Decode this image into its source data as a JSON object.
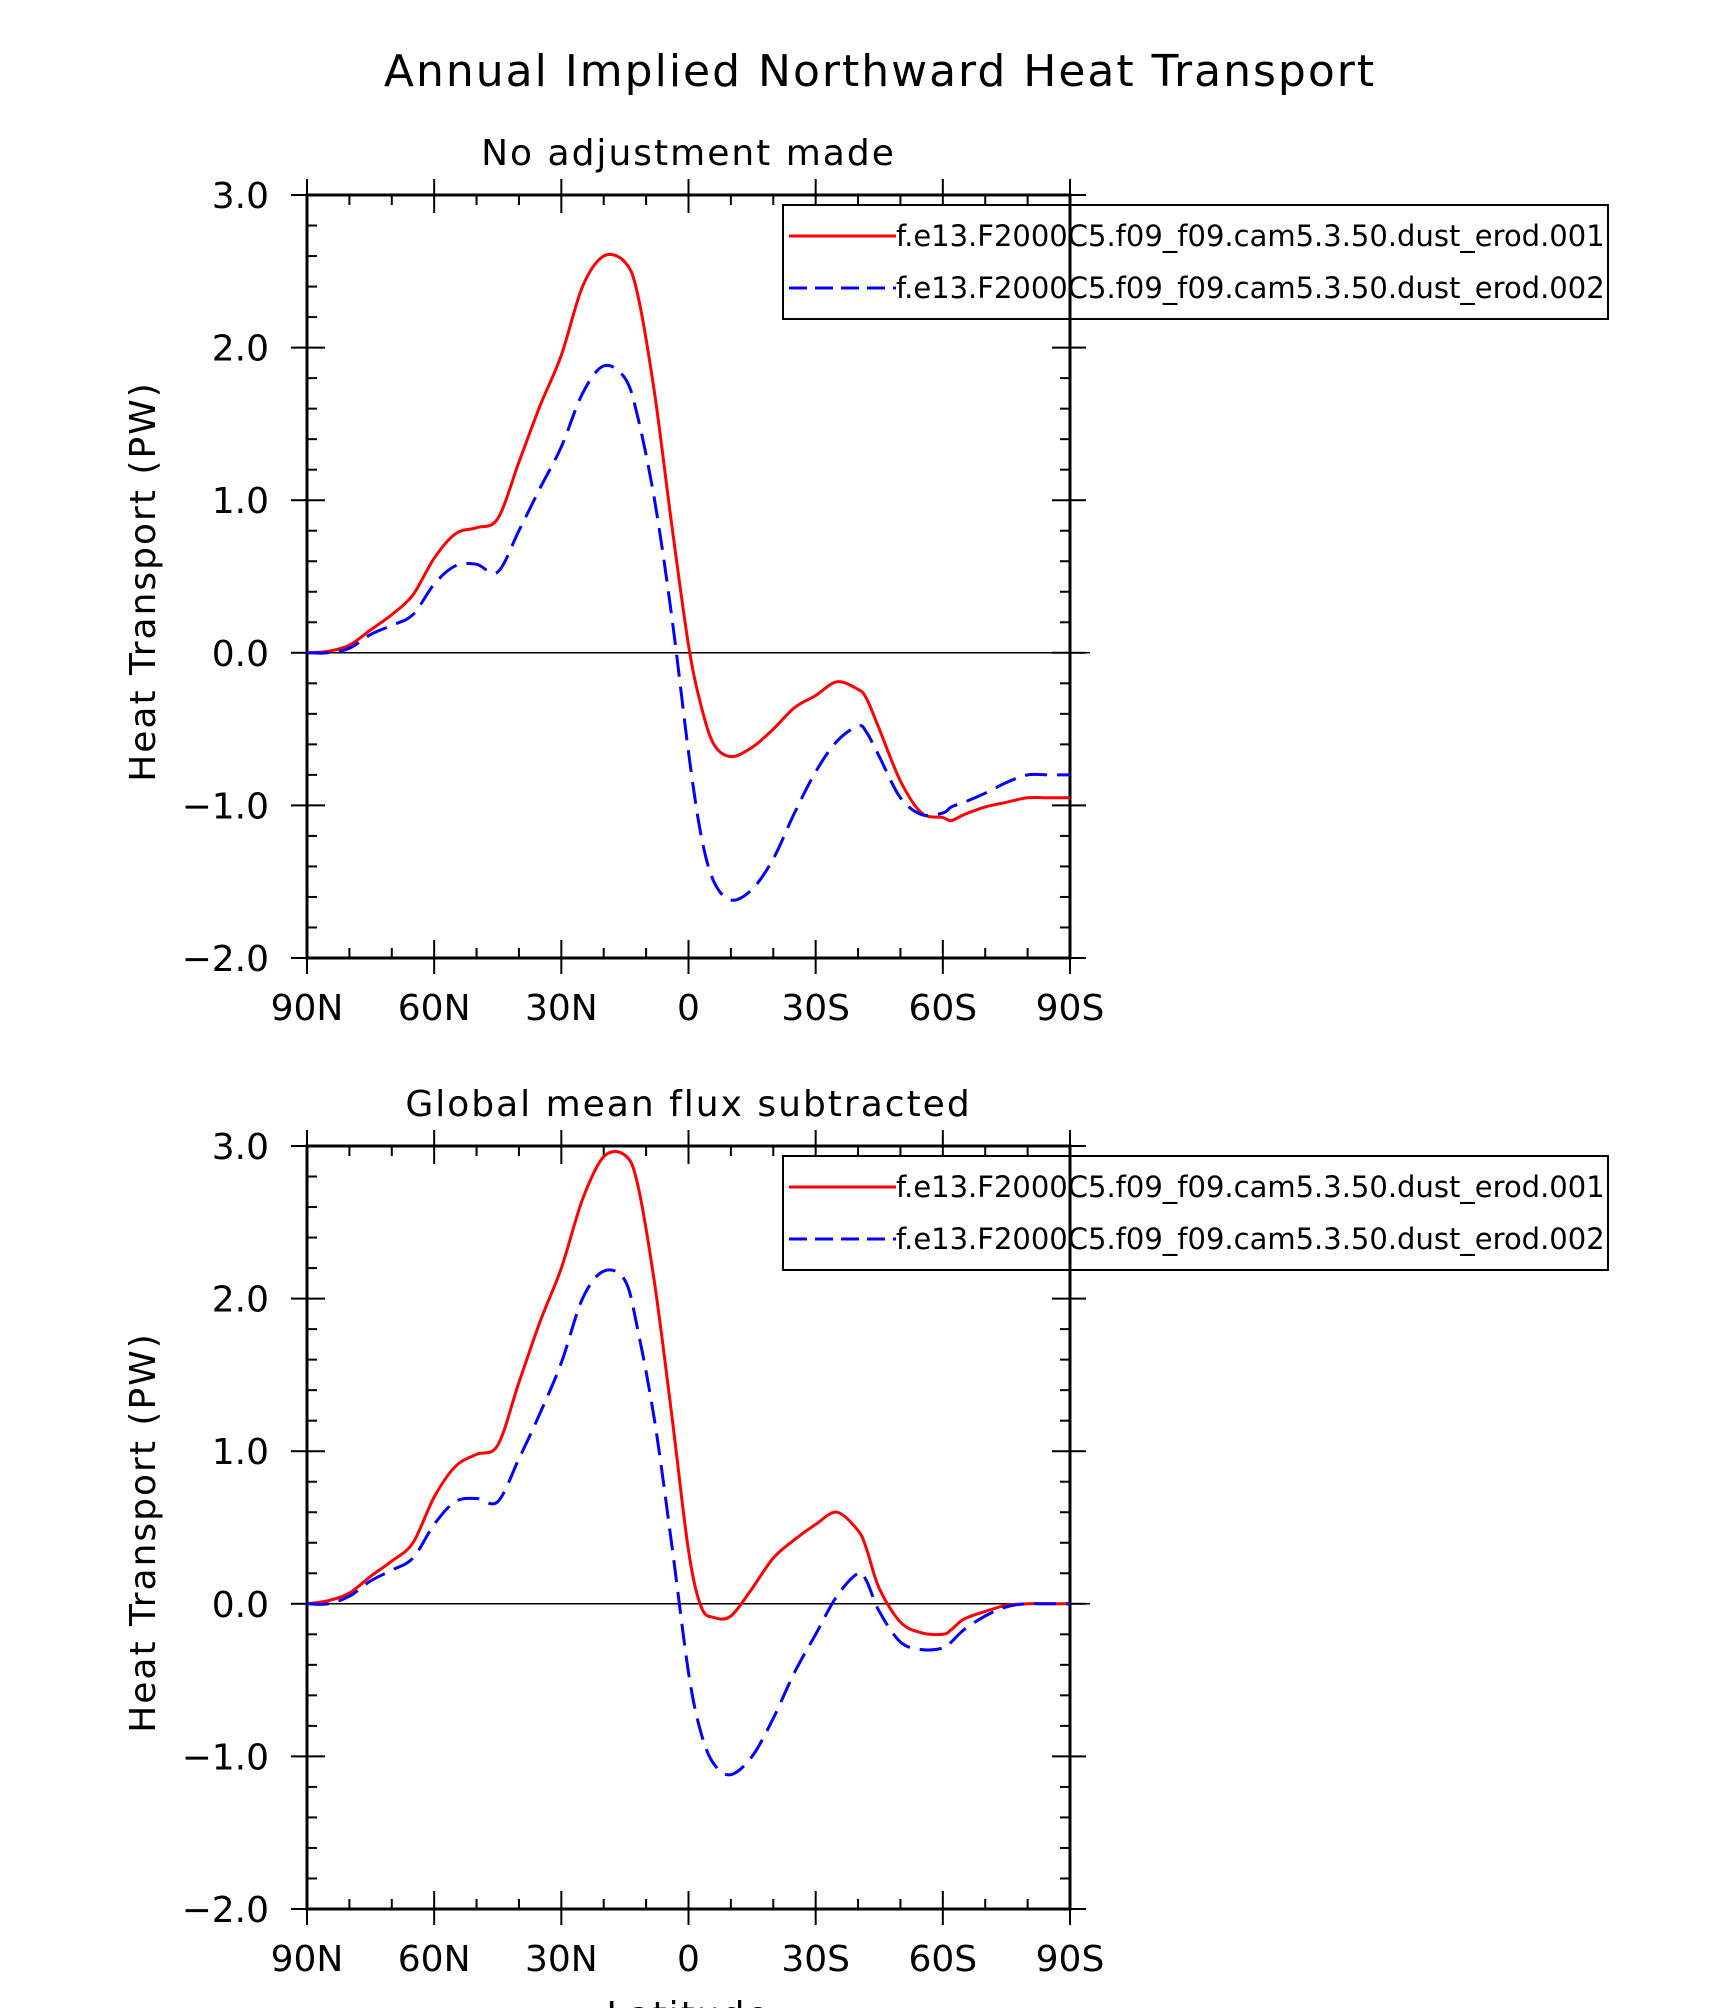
{
  "figure_title": "Annual Implied Northward Heat Transport",
  "chart_data": [
    {
      "type": "line",
      "title": "No adjustment made",
      "xlabel": "",
      "ylabel": "Heat Transport (PW)",
      "xlim": [
        -90,
        90
      ],
      "ylim": [
        -2.0,
        3.0
      ],
      "xticks": [
        -90,
        -60,
        -30,
        0,
        30,
        60,
        90
      ],
      "xtick_labels": [
        "90N",
        "60N",
        "30N",
        "0",
        "30S",
        "60S",
        "90S"
      ],
      "yticks": [
        3.0,
        2.0,
        1.0,
        0.0,
        -1.0,
        -2.0
      ],
      "ytick_labels": [
        "3.0",
        "2.0",
        "1.0",
        "0.0",
        "−1.0",
        "−2.0"
      ],
      "x": [
        -90,
        -85,
        -80,
        -75,
        -70,
        -65,
        -60,
        -55,
        -50,
        -45,
        -40,
        -35,
        -30,
        -25,
        -20,
        -15,
        -12,
        -8,
        -4,
        0,
        3,
        6,
        10,
        15,
        20,
        25,
        30,
        35,
        40,
        42,
        45,
        50,
        55,
        60,
        62,
        65,
        70,
        75,
        80,
        85,
        90
      ],
      "series": [
        {
          "name": "f.e13.F2000C5.f09_f09.cam5.3.50.dust_erod.001",
          "color": "#ff0000",
          "dash": "solid",
          "values": [
            0.0,
            0.01,
            0.05,
            0.15,
            0.25,
            0.38,
            0.62,
            0.78,
            0.82,
            0.88,
            1.25,
            1.62,
            1.95,
            2.4,
            2.6,
            2.56,
            2.35,
            1.7,
            0.85,
            0.05,
            -0.35,
            -0.6,
            -0.68,
            -0.62,
            -0.5,
            -0.36,
            -0.28,
            -0.19,
            -0.24,
            -0.3,
            -0.5,
            -0.84,
            -1.05,
            -1.08,
            -1.1,
            -1.06,
            -1.01,
            -0.98,
            -0.95,
            -0.95,
            -0.95
          ]
        },
        {
          "name": "f.e13.F2000C5.f09_f09.cam5.3.50.dust_erod.002",
          "color": "#0000ff",
          "dash": "dashed",
          "values": [
            0.0,
            0.0,
            0.03,
            0.12,
            0.18,
            0.25,
            0.45,
            0.57,
            0.58,
            0.53,
            0.8,
            1.08,
            1.35,
            1.7,
            1.88,
            1.8,
            1.55,
            1.0,
            0.25,
            -0.65,
            -1.2,
            -1.5,
            -1.62,
            -1.55,
            -1.35,
            -1.05,
            -0.78,
            -0.58,
            -0.48,
            -0.52,
            -0.68,
            -0.95,
            -1.06,
            -1.05,
            -1.01,
            -0.98,
            -0.92,
            -0.85,
            -0.8,
            -0.8,
            -0.8
          ]
        }
      ],
      "legend": {
        "position": "top-right"
      }
    },
    {
      "type": "line",
      "title": "Global mean flux subtracted",
      "xlabel": "Latitude",
      "ylabel": "Heat Transport (PW)",
      "xlim": [
        -90,
        90
      ],
      "ylim": [
        -2.0,
        3.0
      ],
      "xticks": [
        -90,
        -60,
        -30,
        0,
        30,
        60,
        90
      ],
      "xtick_labels": [
        "90N",
        "60N",
        "30N",
        "0",
        "30S",
        "60S",
        "90S"
      ],
      "yticks": [
        3.0,
        2.0,
        1.0,
        0.0,
        -1.0,
        -2.0
      ],
      "ytick_labels": [
        "3.0",
        "2.0",
        "1.0",
        "0.0",
        "−1.0",
        "−2.0"
      ],
      "x": [
        -90,
        -85,
        -80,
        -75,
        -70,
        -65,
        -60,
        -55,
        -50,
        -45,
        -40,
        -35,
        -30,
        -25,
        -20,
        -15,
        -12,
        -8,
        -4,
        0,
        3,
        6,
        10,
        15,
        20,
        25,
        30,
        35,
        40,
        42,
        45,
        50,
        55,
        60,
        62,
        65,
        70,
        75,
        80,
        85,
        90
      ],
      "series": [
        {
          "name": "f.e13.F2000C5.f09_f09.cam5.3.50.dust_erod.001",
          "color": "#ff0000",
          "dash": "solid",
          "values": [
            0.0,
            0.02,
            0.07,
            0.18,
            0.28,
            0.4,
            0.7,
            0.9,
            0.98,
            1.04,
            1.45,
            1.85,
            2.2,
            2.65,
            2.93,
            2.94,
            2.75,
            2.1,
            1.25,
            0.35,
            -0.02,
            -0.09,
            -0.08,
            0.1,
            0.3,
            0.42,
            0.52,
            0.6,
            0.48,
            0.36,
            0.1,
            -0.12,
            -0.19,
            -0.2,
            -0.17,
            -0.1,
            -0.05,
            -0.01,
            0.0,
            0.0,
            0.0
          ]
        },
        {
          "name": "f.e13.F2000C5.f09_f09.cam5.3.50.dust_erod.002",
          "color": "#0000ff",
          "dash": "dashed",
          "values": [
            0.0,
            0.0,
            0.05,
            0.15,
            0.22,
            0.3,
            0.52,
            0.67,
            0.69,
            0.67,
            0.95,
            1.25,
            1.58,
            2.0,
            2.18,
            2.12,
            1.8,
            1.2,
            0.4,
            -0.45,
            -0.85,
            -1.05,
            -1.12,
            -1.0,
            -0.75,
            -0.45,
            -0.2,
            0.05,
            0.2,
            0.15,
            -0.05,
            -0.25,
            -0.3,
            -0.29,
            -0.25,
            -0.17,
            -0.08,
            -0.02,
            0.0,
            0.0,
            0.0
          ]
        }
      ],
      "legend": {
        "position": "top-right"
      }
    }
  ]
}
